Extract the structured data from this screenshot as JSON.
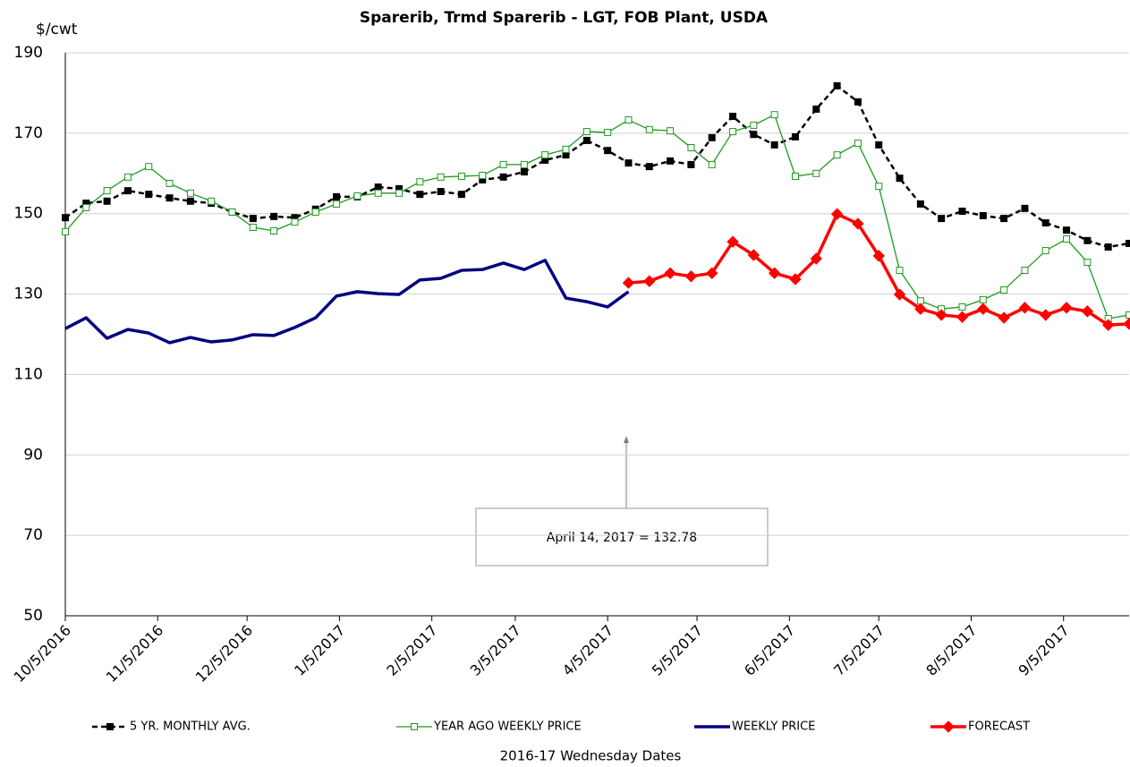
{
  "chart_data": {
    "type": "line",
    "title": "Sparerib, Trmd Sparerib - LGT, FOB Plant, USDA",
    "y_label": "$/cwt",
    "x_label": "2016-17 Wednesday Dates",
    "annotation": "April 14, 2017  = 132.78",
    "x": [
      "10/5/2016",
      "10/12/2016",
      "10/19/2016",
      "10/26/2016",
      "11/2/2016",
      "11/9/2016",
      "11/16/2016",
      "11/23/2016",
      "11/30/2016",
      "12/7/2016",
      "12/14/2016",
      "12/21/2016",
      "12/28/2016",
      "1/4/2017",
      "1/11/2017",
      "1/18/2017",
      "1/25/2017",
      "2/1/2017",
      "2/8/2017",
      "2/15/2017",
      "2/22/2017",
      "3/1/2017",
      "3/8/2017",
      "3/15/2017",
      "3/22/2017",
      "3/29/2017",
      "4/5/2017",
      "4/12/2017",
      "4/19/2017",
      "4/26/2017",
      "5/3/2017",
      "5/10/2017",
      "5/17/2017",
      "5/24/2017",
      "5/31/2017",
      "6/7/2017",
      "6/14/2017",
      "6/21/2017",
      "6/28/2017",
      "7/5/2017",
      "7/12/2017",
      "7/19/2017",
      "7/26/2017",
      "8/2/2017",
      "8/9/2017",
      "8/16/2017",
      "8/23/2017",
      "8/30/2017",
      "9/6/2017",
      "9/13/2017",
      "9/20/2017",
      "9/27/2017"
    ],
    "xlim": [
      "10/5/2016",
      "9/27/2017"
    ],
    "xticks": [
      "10/5/2016",
      "11/5/2016",
      "12/5/2016",
      "1/5/2017",
      "2/5/2017",
      "3/5/2017",
      "4/5/2017",
      "5/5/2017",
      "6/5/2017",
      "7/5/2017",
      "8/5/2017",
      "9/5/2017"
    ],
    "ylim": [
      50,
      190
    ],
    "yticks": [
      50,
      70,
      90,
      110,
      130,
      150,
      170,
      190
    ],
    "grid": true,
    "series": [
      {
        "name": "5 YR. MONTHLY AVG.",
        "color": "#000000",
        "line_style": "dashed",
        "marker": "square",
        "marker_fill": true,
        "values": [
          149.0,
          152.6,
          153.1,
          155.7,
          154.8,
          153.9,
          153.1,
          152.6,
          150.4,
          148.8,
          149.3,
          149.0,
          151.1,
          154.2,
          154.2,
          156.6,
          156.2,
          154.8,
          155.5,
          154.8,
          158.4,
          159.1,
          160.4,
          163.3,
          164.6,
          168.2,
          165.7,
          162.6,
          161.7,
          163.1,
          162.2,
          168.9,
          174.2,
          169.7,
          167.1,
          169.1,
          176.0,
          181.8,
          177.8,
          167.1,
          158.8,
          152.4,
          148.8,
          150.6,
          149.5,
          148.8,
          151.3,
          147.7,
          145.9,
          143.3,
          141.7,
          142.6
        ]
      },
      {
        "name": "YEAR AGO WEEKLY PRICE",
        "color": "#1e9a1e",
        "line_style": "solid",
        "marker": "square",
        "marker_fill": false,
        "values": [
          145.5,
          151.5,
          155.7,
          159.1,
          161.7,
          157.5,
          155.1,
          153.1,
          150.4,
          146.6,
          145.7,
          147.9,
          150.4,
          152.4,
          154.4,
          155.1,
          155.1,
          157.9,
          159.1,
          159.3,
          159.5,
          162.2,
          162.2,
          164.6,
          166.0,
          170.4,
          170.2,
          173.3,
          170.9,
          170.6,
          166.4,
          162.2,
          170.4,
          172.0,
          174.6,
          159.3,
          160.0,
          164.6,
          167.5,
          156.8,
          135.9,
          128.3,
          126.3,
          126.8,
          128.6,
          131.0,
          135.9,
          140.8,
          143.7,
          137.9,
          123.9,
          124.8
        ]
      },
      {
        "name": "WEEKLY PRICE",
        "color": "#000080",
        "line_style": "solid",
        "marker": "none",
        "marker_fill": true,
        "values": [
          121.4,
          124.1,
          119.0,
          121.2,
          120.3,
          117.9,
          119.2,
          118.1,
          118.6,
          119.9,
          119.7,
          121.7,
          124.1,
          129.5,
          130.6,
          130.1,
          129.9,
          133.5,
          133.9,
          135.9,
          136.1,
          137.7,
          136.1,
          138.4,
          129.0,
          128.1,
          126.8,
          130.6,
          null,
          null,
          null,
          null,
          null,
          null,
          null,
          null,
          null,
          null,
          null,
          null,
          null,
          null,
          null,
          null,
          null,
          null,
          null,
          null,
          null,
          null,
          null,
          null
        ]
      },
      {
        "name": "FORECAST",
        "color": "#ff0000",
        "line_style": "solid",
        "marker": "diamond",
        "marker_fill": true,
        "values": [
          null,
          null,
          null,
          null,
          null,
          null,
          null,
          null,
          null,
          null,
          null,
          null,
          null,
          null,
          null,
          null,
          null,
          null,
          null,
          null,
          null,
          null,
          null,
          null,
          null,
          null,
          null,
          132.78,
          133.2,
          135.2,
          134.4,
          135.2,
          143.0,
          139.7,
          135.2,
          133.7,
          138.8,
          149.9,
          147.5,
          139.5,
          129.9,
          126.3,
          124.8,
          124.3,
          126.3,
          124.1,
          126.6,
          124.8,
          126.6,
          125.7,
          122.3,
          122.6
        ]
      }
    ]
  }
}
